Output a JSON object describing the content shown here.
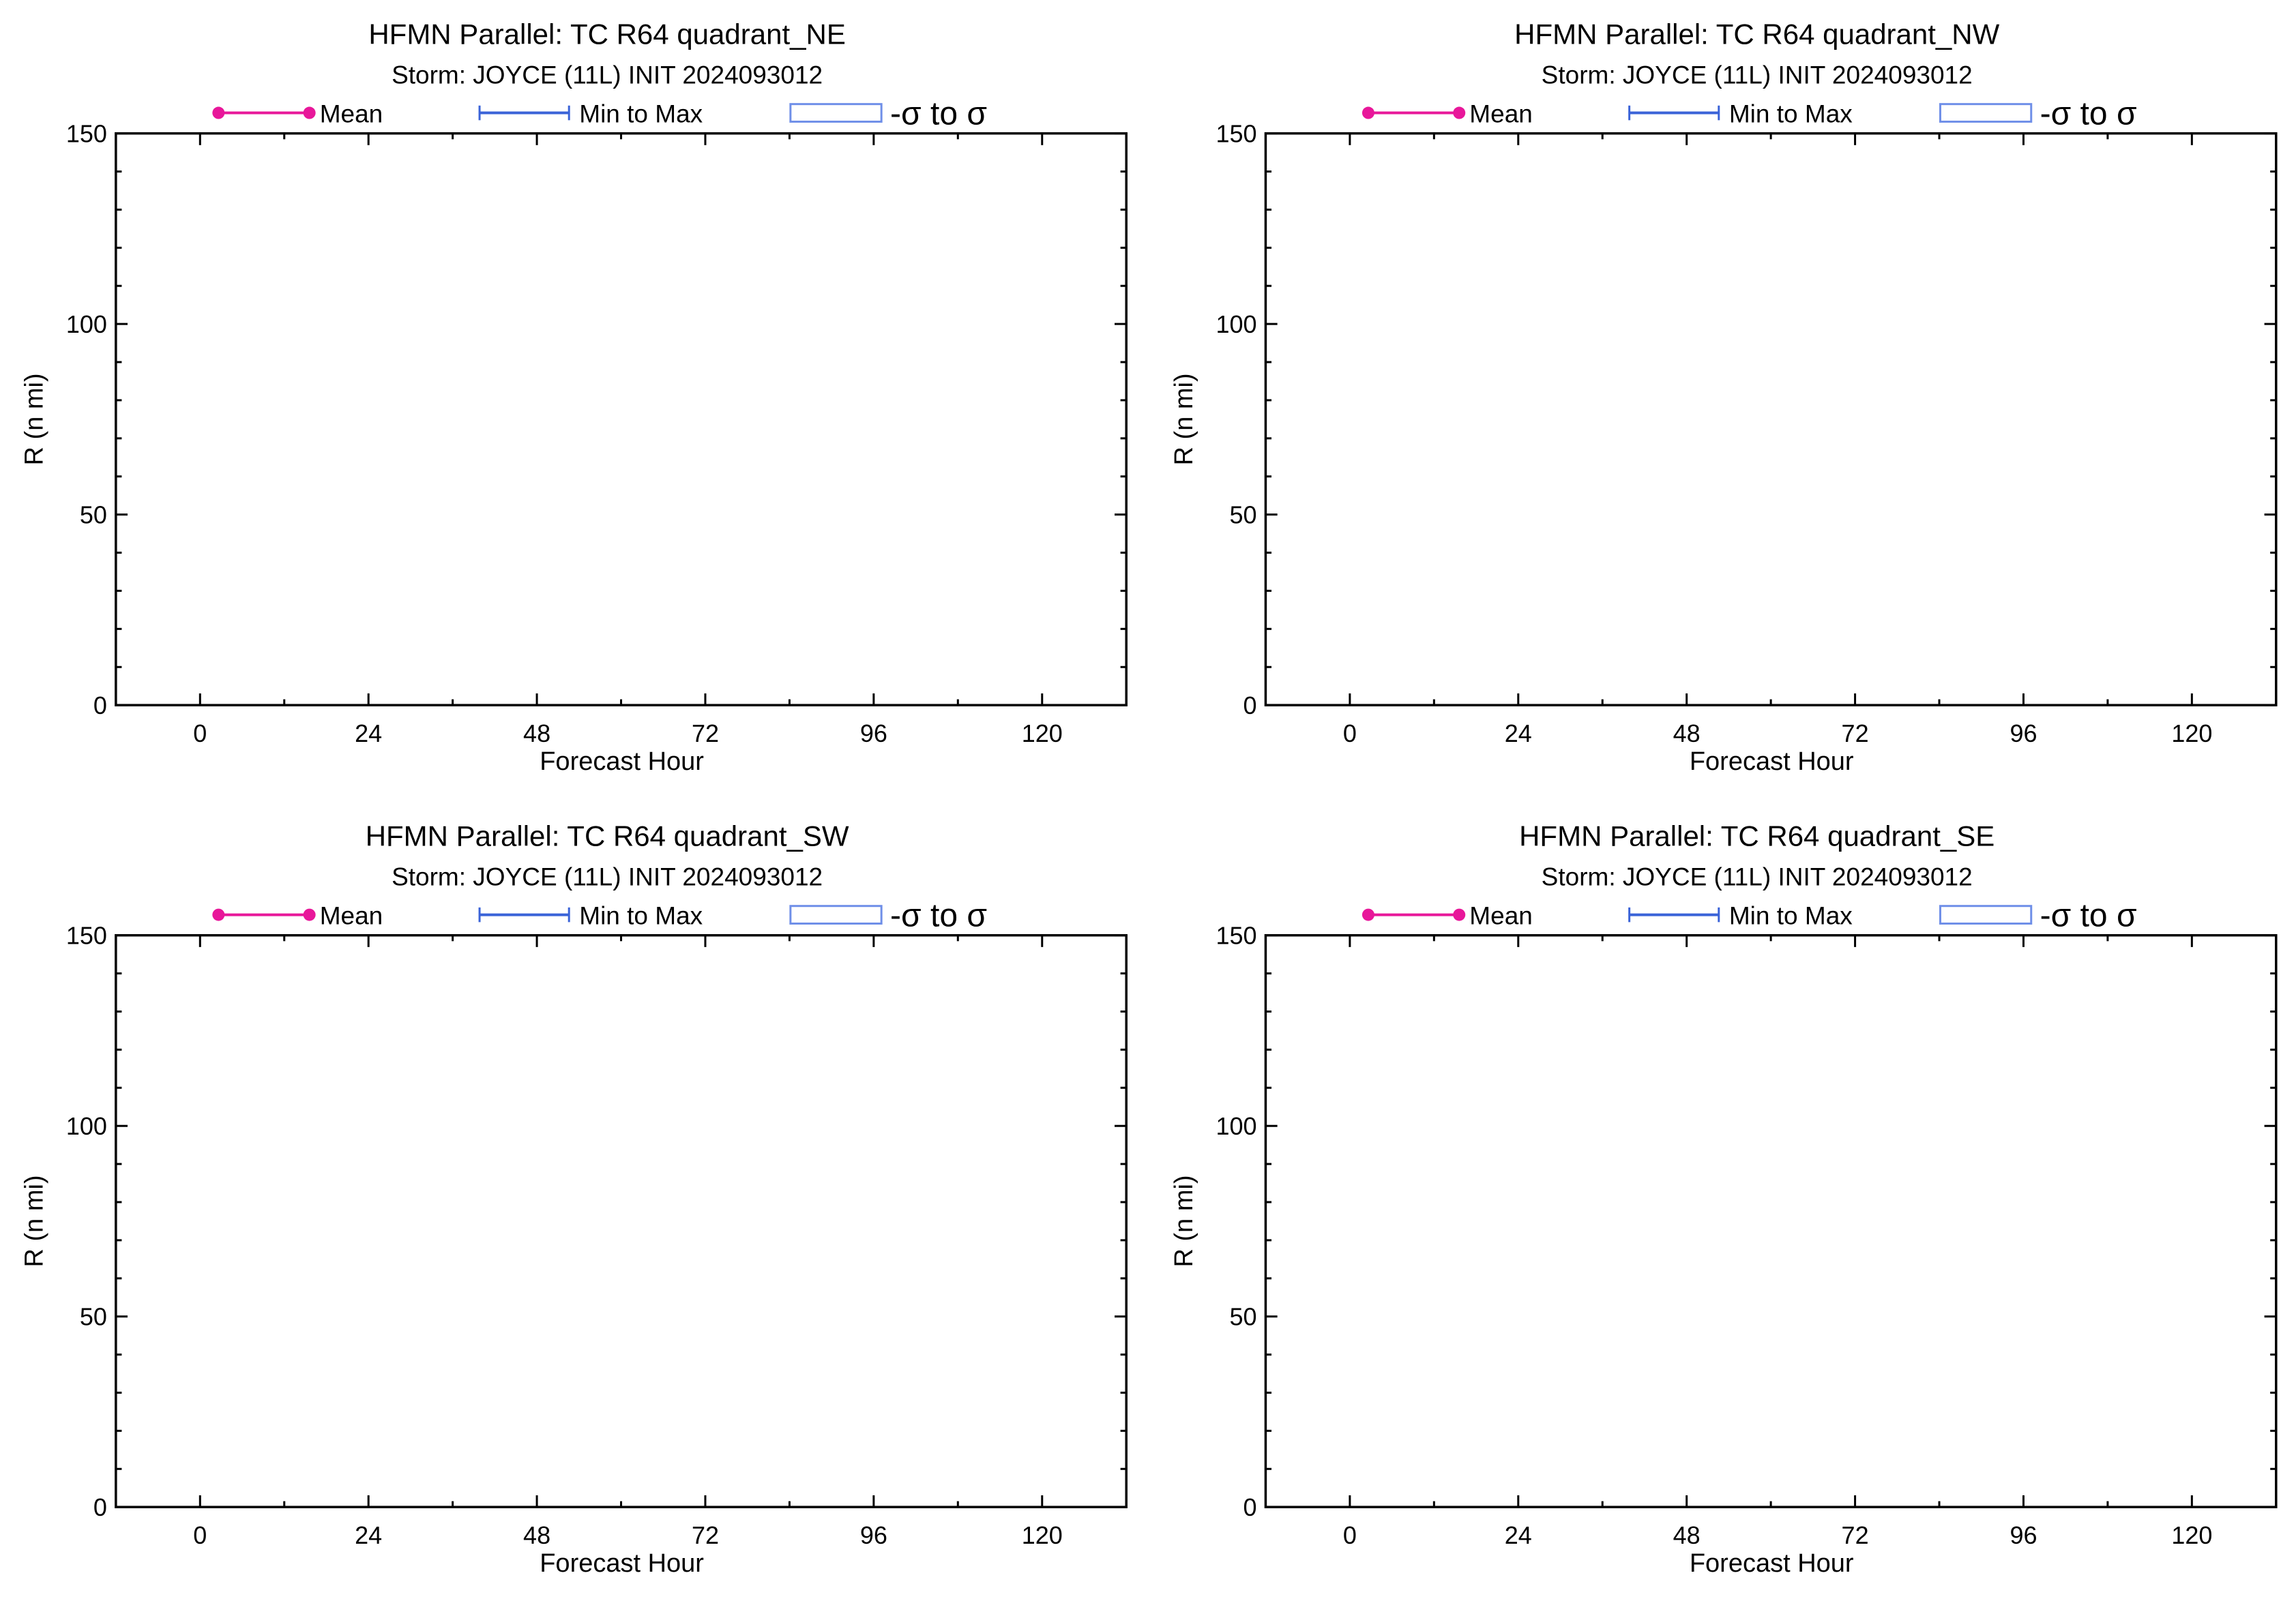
{
  "legend": {
    "mean_label": "Mean",
    "range_label": "Min to Max",
    "sigma_label": "-σ to σ",
    "mean_color": "#e8179a",
    "range_color": "#3a63d8",
    "sigma_color": "#6f8fe8"
  },
  "chart_data": [
    {
      "type": "line",
      "title": "HFMN Parallel: TC  R64 quadrant_NE",
      "subtitle": "Storm: JOYCE (11L) INIT 2024093012",
      "xlabel": "Forecast Hour",
      "ylabel": "R (n mi)",
      "xlim": [
        -12,
        132
      ],
      "ylim": [
        0,
        150
      ],
      "x_ticks": [
        0,
        24,
        48,
        72,
        96,
        120
      ],
      "y_ticks": [
        0,
        50,
        100,
        150
      ],
      "legend_position": "top",
      "series": []
    },
    {
      "type": "line",
      "title": "HFMN Parallel: TC  R64 quadrant_NW",
      "subtitle": "Storm: JOYCE (11L) INIT 2024093012",
      "xlabel": "Forecast Hour",
      "ylabel": "R (n mi)",
      "xlim": [
        -12,
        132
      ],
      "ylim": [
        0,
        150
      ],
      "x_ticks": [
        0,
        24,
        48,
        72,
        96,
        120
      ],
      "y_ticks": [
        0,
        50,
        100,
        150
      ],
      "legend_position": "top",
      "series": []
    },
    {
      "type": "line",
      "title": "HFMN Parallel: TC  R64 quadrant_SW",
      "subtitle": "Storm: JOYCE (11L) INIT 2024093012",
      "xlabel": "Forecast Hour",
      "ylabel": "R (n mi)",
      "xlim": [
        -12,
        132
      ],
      "ylim": [
        0,
        150
      ],
      "x_ticks": [
        0,
        24,
        48,
        72,
        96,
        120
      ],
      "y_ticks": [
        0,
        50,
        100,
        150
      ],
      "legend_position": "top",
      "series": []
    },
    {
      "type": "line",
      "title": "HFMN Parallel: TC  R64 quadrant_SE",
      "subtitle": "Storm: JOYCE (11L) INIT 2024093012",
      "xlabel": "Forecast Hour",
      "ylabel": "R (n mi)",
      "xlim": [
        -12,
        132
      ],
      "ylim": [
        0,
        150
      ],
      "x_ticks": [
        0,
        24,
        48,
        72,
        96,
        120
      ],
      "y_ticks": [
        0,
        50,
        100,
        150
      ],
      "legend_position": "top",
      "series": []
    }
  ]
}
